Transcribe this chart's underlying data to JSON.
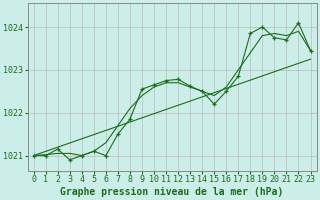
{
  "xlabel": "Graphe pression niveau de la mer (hPa)",
  "bg_color": "#cceee8",
  "grid_color": "#bbbbbb",
  "line_color": "#1a6e1a",
  "text_color": "#1a6e1a",
  "border_color": "#888888",
  "xlim": [
    -0.5,
    23.5
  ],
  "ylim": [
    1020.65,
    1024.55
  ],
  "yticks": [
    1021,
    1022,
    1023,
    1024
  ],
  "xticks": [
    0,
    1,
    2,
    3,
    4,
    5,
    6,
    7,
    8,
    9,
    10,
    11,
    12,
    13,
    14,
    15,
    16,
    17,
    18,
    19,
    20,
    21,
    22,
    23
  ],
  "series1_x": [
    0,
    1,
    2,
    3,
    4,
    5,
    6,
    7,
    8,
    9,
    10,
    11,
    12,
    13,
    14,
    15,
    16,
    17,
    18,
    19,
    20,
    21,
    22,
    23
  ],
  "series1_y": [
    1021.0,
    1021.0,
    1021.15,
    1020.9,
    1021.0,
    1021.1,
    1021.0,
    1021.5,
    1021.85,
    1022.55,
    1022.65,
    1022.75,
    1022.78,
    1022.62,
    1022.5,
    1022.2,
    1022.5,
    1022.85,
    1023.85,
    1024.0,
    1023.75,
    1023.7,
    1024.1,
    1023.45
  ],
  "trend_x": [
    0,
    23
  ],
  "trend_y": [
    1021.0,
    1023.25
  ],
  "smooth_y": [
    1021.0,
    1021.02,
    1021.05,
    1021.05,
    1021.0,
    1021.1,
    1021.3,
    1021.7,
    1022.1,
    1022.4,
    1022.6,
    1022.7,
    1022.7,
    1022.6,
    1022.5,
    1022.4,
    1022.6,
    1023.0,
    1023.4,
    1023.8,
    1023.85,
    1023.8,
    1023.9,
    1023.45
  ],
  "xlabel_fontsize": 7,
  "tick_fontsize": 6
}
